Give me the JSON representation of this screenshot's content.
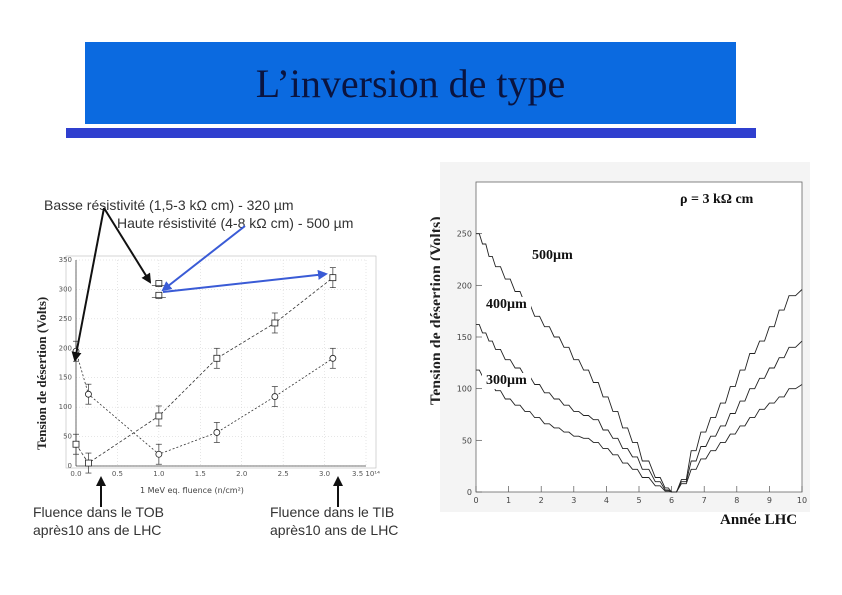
{
  "title": "L’inversion de type",
  "annotations": {
    "low_res": "Basse résistivité (1,5-3 kΩ cm) - 320 µm",
    "high_res": "Haute résistivité (4-8 kΩ cm) - 500 µm",
    "tob_line1": "Fluence dans le TOB",
    "tob_line2": "après10 ans de LHC",
    "tib_line1": "Fluence dans le TIB",
    "tib_line2": "après10 ans de LHC",
    "rho": "ρ = 3 kΩ cm",
    "thick_500": "500µm",
    "thick_400": "400µm",
    "thick_300": "300µm"
  },
  "colors": {
    "banner": "#0b6ae0",
    "underline": "#2f3fcf",
    "arrow_blue": "#3a5bd6"
  },
  "chart_data": [
    {
      "type": "scatter",
      "ylabel": "Tension de désertion (Volts)",
      "xlabel": "1 MeV eq. fluence (n/cm²)",
      "x_ticks": [
        "0.0",
        "0.5",
        "1.0",
        "1.5",
        "2.0",
        "2.5",
        "3.0",
        "3.5 10¹⁴"
      ],
      "y_ticks": [
        "0",
        "50",
        "100",
        "150",
        "200",
        "250",
        "300",
        "350"
      ],
      "xlim": [
        0,
        3.5
      ],
      "ylim": [
        0,
        350
      ],
      "series": [
        {
          "marker": "circle",
          "x": [
            0.0,
            0.15,
            1.0,
            1.7,
            2.4,
            3.1
          ],
          "y": [
            195,
            122,
            20,
            57,
            118,
            183
          ]
        },
        {
          "marker": "square",
          "x": [
            0.0,
            0.15,
            1.0,
            1.7,
            2.4,
            3.1
          ],
          "y": [
            37,
            5,
            85,
            183,
            243,
            320
          ]
        }
      ],
      "extra_points": [
        {
          "marker": "square",
          "x": 1.0,
          "y": 310
        },
        {
          "marker": "square",
          "x": 1.0,
          "y": 290
        }
      ]
    },
    {
      "type": "line",
      "ylabel": "Tension de désertion (Volts)",
      "xlabel": "Année LHC",
      "x_ticks": [
        "0",
        "1",
        "2",
        "3",
        "4",
        "5",
        "6",
        "7",
        "8",
        "9",
        "10"
      ],
      "y_ticks": [
        "0",
        "50",
        "100",
        "150",
        "200",
        "250"
      ],
      "xlim": [
        0,
        10
      ],
      "ylim": [
        0,
        300
      ],
      "series": [
        {
          "x": [
            0,
            0.2,
            0.4,
            0.6,
            0.9,
            1.2,
            1.5,
            1.8,
            2.1,
            2.4,
            2.7,
            3.0,
            3.3,
            3.6,
            3.9,
            4.2,
            4.5,
            4.8,
            5.1,
            5.5,
            5.8,
            6.0,
            6.3,
            6.6,
            6.9,
            7.2,
            7.5,
            7.8,
            8.1,
            8.4,
            8.7,
            9.0,
            9.3,
            9.6,
            10
          ],
          "y": [
            250,
            240,
            228,
            218,
            206,
            194,
            182,
            170,
            160,
            150,
            140,
            128,
            118,
            106,
            92,
            78,
            62,
            48,
            30,
            14,
            4,
            0,
            12,
            40,
            58,
            72,
            86,
            102,
            118,
            134,
            146,
            160,
            176,
            190,
            196
          ]
        },
        {
          "x": [
            0,
            0.2,
            0.4,
            0.6,
            0.9,
            1.2,
            1.5,
            1.8,
            2.1,
            2.4,
            2.7,
            3.0,
            3.3,
            3.6,
            3.9,
            4.2,
            4.5,
            4.8,
            5.1,
            5.5,
            5.8,
            6.0,
            6.3,
            6.6,
            6.9,
            7.2,
            7.5,
            7.8,
            8.1,
            8.4,
            8.7,
            9.0,
            9.3,
            9.6,
            10
          ],
          "y": [
            162,
            154,
            146,
            138,
            128,
            120,
            112,
            104,
            96,
            90,
            84,
            78,
            74,
            70,
            60,
            52,
            42,
            34,
            22,
            10,
            2,
            0,
            10,
            30,
            44,
            54,
            64,
            76,
            88,
            100,
            110,
            120,
            130,
            140,
            146
          ]
        },
        {
          "x": [
            0,
            0.2,
            0.4,
            0.6,
            0.9,
            1.2,
            1.5,
            1.8,
            2.1,
            2.4,
            2.7,
            3.0,
            3.3,
            3.6,
            3.9,
            4.2,
            4.5,
            4.8,
            5.1,
            5.5,
            5.8,
            6.0,
            6.3,
            6.6,
            6.9,
            7.2,
            7.5,
            7.8,
            8.1,
            8.4,
            8.7,
            9.0,
            9.3,
            9.6,
            10
          ],
          "y": [
            118,
            112,
            106,
            98,
            90,
            84,
            78,
            72,
            66,
            62,
            58,
            54,
            52,
            48,
            42,
            36,
            28,
            22,
            14,
            6,
            1,
            0,
            8,
            22,
            32,
            40,
            48,
            56,
            64,
            72,
            80,
            86,
            92,
            100,
            104
          ]
        }
      ]
    }
  ]
}
